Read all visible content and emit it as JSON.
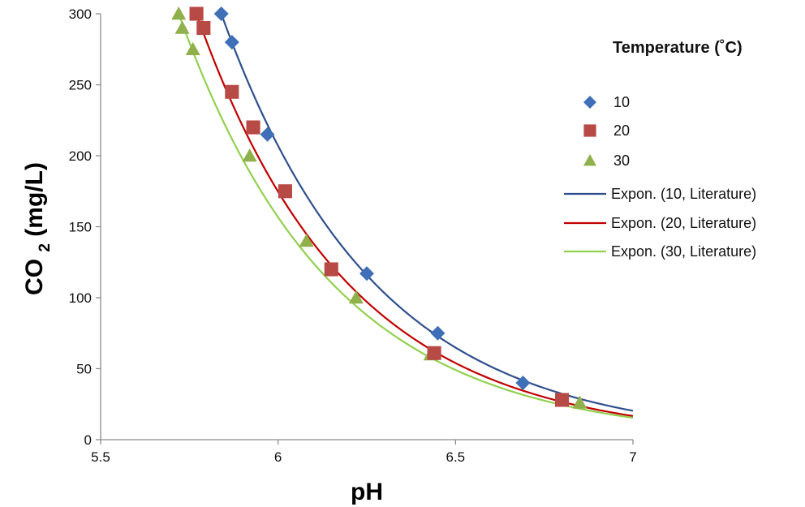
{
  "chart_data": {
    "type": "scatter",
    "xlabel": "pH",
    "ylabel_main": "CO",
    "ylabel_sub": "2",
    "ylabel_suffix": " (mg/L)",
    "xlim": [
      5.5,
      7
    ],
    "ylim": [
      0,
      300
    ],
    "x_ticks": [
      5.5,
      6,
      6.5,
      7
    ],
    "x_tick_labels": [
      "5.5",
      "6",
      "6.5",
      "7"
    ],
    "y_ticks": [
      0,
      50,
      100,
      150,
      200,
      250,
      300
    ],
    "y_tick_labels": [
      "0",
      "50",
      "100",
      "150",
      "200",
      "250",
      "300"
    ],
    "grid": false,
    "legend": {
      "title": "Temperature (˚C)",
      "placement": "right"
    },
    "series": [
      {
        "name": "10",
        "marker": "diamond",
        "color": "#3f6fb6",
        "x": [
          5.84,
          5.87,
          5.97,
          6.25,
          6.45,
          6.69
        ],
        "y": [
          300,
          280,
          215,
          117,
          75,
          40
        ]
      },
      {
        "name": "20",
        "marker": "square",
        "color": "#b84a46",
        "x": [
          5.77,
          5.79,
          5.87,
          5.93,
          6.02,
          6.15,
          6.44,
          6.8
        ],
        "y": [
          300,
          290,
          245,
          220,
          175,
          120,
          61,
          28
        ]
      },
      {
        "name": "30",
        "marker": "triangle",
        "color": "#8fb04a",
        "x": [
          5.72,
          5.73,
          5.76,
          5.92,
          6.08,
          6.22,
          6.43,
          6.85
        ],
        "y": [
          300,
          290,
          275,
          200,
          140,
          100,
          60,
          26
        ]
      }
    ],
    "trendlines": [
      {
        "name": "Expon. (10, Literature)",
        "color": "#2e4f8c",
        "a": 300,
        "x0": 5.84,
        "k": 2.32
      },
      {
        "name": "Expon. (20, Literature)",
        "color": "#c00000",
        "a": 300,
        "x0": 5.77,
        "k": 2.35
      },
      {
        "name": "Expon. (30, Literature)",
        "color": "#92d050",
        "a": 300,
        "x0": 5.72,
        "k": 2.32
      }
    ]
  }
}
